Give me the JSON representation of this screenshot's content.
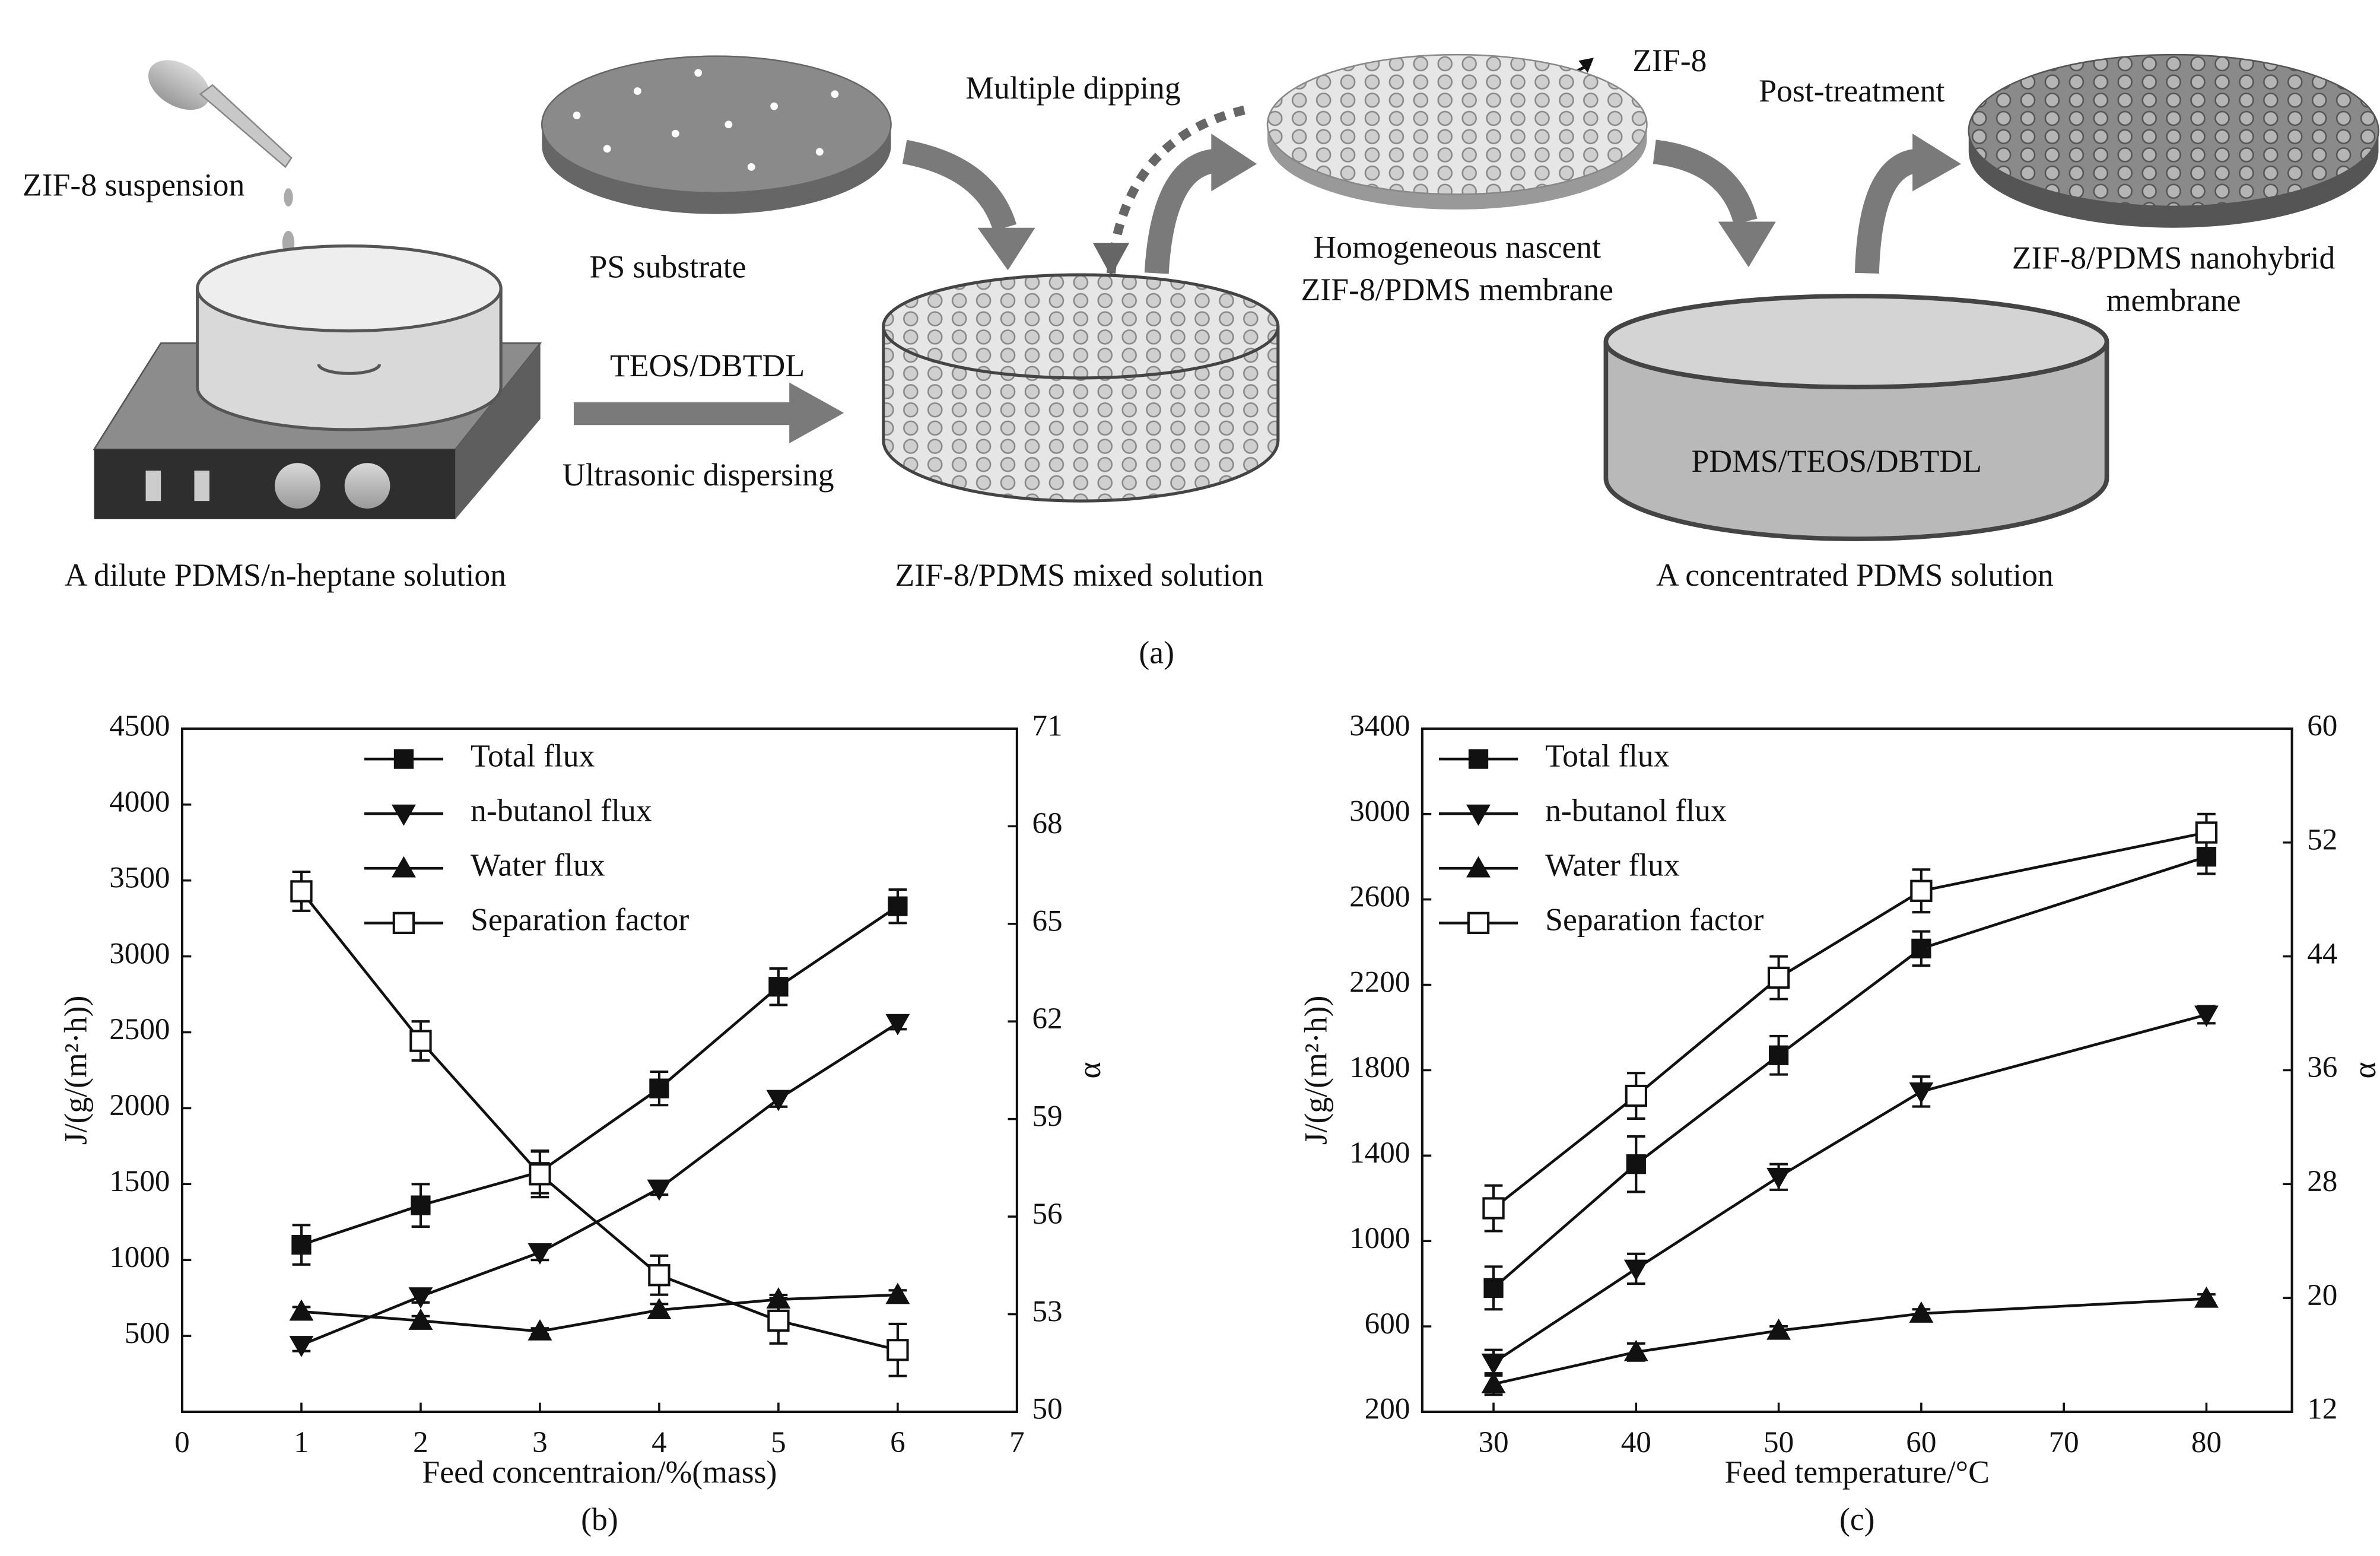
{
  "diagram": {
    "zif8_suspension": "ZIF-8 suspension",
    "ps_substrate": "PS substrate",
    "teos_dbtdl": "TEOS/DBTDL",
    "ultrasonic": "Ultrasonic dispersing",
    "dilute_solution": "A dilute PDMS/n-heptane solution",
    "multiple_dipping": "Multiple dipping",
    "zif8": "ZIF-8",
    "nascent_line1": "Homogeneous nascent",
    "nascent_line2": "ZIF-8/PDMS membrane",
    "post_treatment": "Post-treatment",
    "nanohybrid_line1": "ZIF-8/PDMS nanohybrid",
    "nanohybrid_line2": "membrane",
    "pdms_teos_dbtdl": "PDMS/TEOS/DBTDL",
    "mixed_solution": "ZIF-8/PDMS mixed solution",
    "concentrated_solution": "A concentrated PDMS solution",
    "caption": "(a)"
  },
  "chart_data": [
    {
      "type": "line",
      "panel_label": "(b)",
      "x_label": "Feed concentraion/%(mass)",
      "y_label": "J/(g/(m²·h))",
      "y2_label": "α",
      "x": [
        1,
        2,
        3,
        4,
        5,
        6
      ],
      "xlim": [
        0,
        7
      ],
      "xticks": [
        0,
        1,
        2,
        3,
        4,
        5,
        6,
        7
      ],
      "ylim": [
        0,
        4500
      ],
      "yticks": [
        500,
        1000,
        1500,
        2000,
        2500,
        3000,
        3500,
        4000,
        4500
      ],
      "y2lim": [
        50,
        71
      ],
      "y2ticks": [
        50,
        53,
        56,
        59,
        62,
        65,
        68,
        71
      ],
      "legend": "upper left",
      "series": [
        {
          "name": "Total flux",
          "color": "#111111",
          "marker": "square",
          "values": [
            1100,
            1360,
            1580,
            2130,
            2800,
            3330
          ],
          "errors": [
            130,
            140,
            140,
            110,
            120,
            110
          ]
        },
        {
          "name": "n-butanol flux",
          "color": "#111111",
          "marker": "triangle-down",
          "values": [
            440,
            760,
            1050,
            1470,
            2060,
            2560
          ],
          "errors": [
            40,
            40,
            50,
            40,
            50,
            40
          ]
        },
        {
          "name": "Water flux",
          "color": "#111111",
          "marker": "triangle-up",
          "values": [
            660,
            600,
            530,
            670,
            740,
            770
          ],
          "errors": [
            30,
            30,
            20,
            40,
            30,
            30
          ]
        },
        {
          "name": "Separation factor",
          "color": "#111111",
          "marker": "square-open",
          "axis": "y2",
          "values": [
            66.0,
            61.4,
            57.3,
            54.2,
            52.8,
            51.9
          ],
          "errors": [
            0.6,
            0.6,
            0.7,
            0.6,
            0.7,
            0.8
          ]
        }
      ]
    },
    {
      "type": "line",
      "panel_label": "(c)",
      "x_label": "Feed temperature/°C",
      "y_label": "J/(g/(m²·h))",
      "y2_label": "α",
      "x": [
        30,
        40,
        50,
        60,
        80
      ],
      "xlim": [
        25,
        86
      ],
      "xticks": [
        30,
        40,
        50,
        60,
        70,
        80
      ],
      "ylim": [
        200,
        3400
      ],
      "yticks": [
        200,
        600,
        1000,
        1400,
        1800,
        2200,
        2600,
        3000,
        3400
      ],
      "y2lim": [
        12,
        60
      ],
      "y2ticks": [
        12,
        20,
        28,
        36,
        44,
        52,
        60
      ],
      "legend": "upper left",
      "series": [
        {
          "name": "Total flux",
          "color": "#111111",
          "marker": "square",
          "values": [
            780,
            1360,
            1870,
            2370,
            2800
          ],
          "errors": [
            100,
            130,
            90,
            80,
            80
          ]
        },
        {
          "name": "n-butanol flux",
          "color": "#111111",
          "marker": "triangle-down",
          "values": [
            430,
            870,
            1300,
            1700,
            2060
          ],
          "errors": [
            60,
            70,
            60,
            70,
            40
          ]
        },
        {
          "name": "Water flux",
          "color": "#111111",
          "marker": "triangle-up",
          "values": [
            330,
            480,
            580,
            660,
            730
          ],
          "errors": [
            50,
            40,
            20,
            20,
            20
          ]
        },
        {
          "name": "Separation factor",
          "color": "#111111",
          "marker": "square-open",
          "axis": "y2",
          "values": [
            26.3,
            34.2,
            42.5,
            48.6,
            52.7
          ],
          "errors": [
            1.6,
            1.6,
            1.5,
            1.5,
            1.3
          ]
        }
      ]
    }
  ]
}
